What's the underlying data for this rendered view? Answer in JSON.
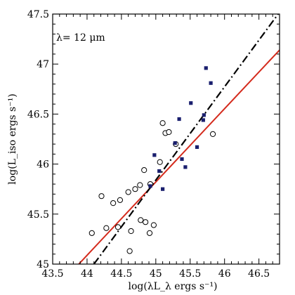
{
  "chart_data": {
    "type": "scatter",
    "title": "",
    "annotation": "λ= 12 μm",
    "xlabel": "log(λL_λ ergs s⁻¹)",
    "ylabel": "log(L_iso ergs s⁻¹)",
    "xlim": [
      43.5,
      46.8
    ],
    "ylim": [
      45.0,
      47.5
    ],
    "x_ticks": [
      43.5,
      44,
      44.5,
      45,
      45.5,
      46,
      46.5
    ],
    "x_tick_labels": [
      "43.5",
      "44",
      "44.5",
      "45",
      "45.5",
      "46",
      "46.5"
    ],
    "y_ticks": [
      45,
      45.5,
      46,
      46.5,
      47,
      47.5
    ],
    "y_tick_labels": [
      "45",
      "45.5",
      "46",
      "46.5",
      "47",
      "47.5"
    ],
    "grid": false,
    "colors": {
      "fit_red": "#d42a1c",
      "fit_black": "#000000",
      "squares": "#1a1f6e",
      "circles": "#000000"
    },
    "series": [
      {
        "marker": "open-circle",
        "points": [
          [
            44.07,
            45.31
          ],
          [
            44.21,
            45.68
          ],
          [
            44.28,
            45.36
          ],
          [
            44.38,
            45.61
          ],
          [
            44.45,
            45.37
          ],
          [
            44.48,
            45.64
          ],
          [
            44.6,
            45.72
          ],
          [
            44.62,
            45.13
          ],
          [
            44.64,
            45.33
          ],
          [
            44.7,
            45.75
          ],
          [
            44.77,
            45.79
          ],
          [
            44.78,
            45.44
          ],
          [
            44.83,
            45.94
          ],
          [
            44.85,
            45.42
          ],
          [
            44.91,
            45.31
          ],
          [
            44.92,
            45.8
          ],
          [
            44.97,
            45.39
          ],
          [
            45.06,
            46.02
          ],
          [
            45.1,
            46.41
          ],
          [
            45.14,
            46.31
          ],
          [
            45.19,
            46.32
          ],
          [
            45.29,
            46.2
          ],
          [
            45.83,
            46.3
          ]
        ]
      },
      {
        "marker": "filled-square",
        "points": [
          [
            44.92,
            45.78
          ],
          [
            44.98,
            46.09
          ],
          [
            45.05,
            45.93
          ],
          [
            45.1,
            45.75
          ],
          [
            45.28,
            46.21
          ],
          [
            45.34,
            46.45
          ],
          [
            45.38,
            46.05
          ],
          [
            45.43,
            45.97
          ],
          [
            45.51,
            46.61
          ],
          [
            45.6,
            46.17
          ],
          [
            45.69,
            46.44
          ],
          [
            45.7,
            46.49
          ],
          [
            45.73,
            46.96
          ],
          [
            45.8,
            46.81
          ]
        ]
      }
    ],
    "fit_lines": [
      {
        "style": "solid",
        "color": "#d42a1c",
        "from": [
          43.88,
          45.0
        ],
        "to": [
          46.8,
          47.14
        ]
      },
      {
        "style": "dash-dot",
        "color": "#000000",
        "from": [
          44.1,
          45.0
        ],
        "to": [
          46.78,
          47.5
        ]
      }
    ]
  }
}
